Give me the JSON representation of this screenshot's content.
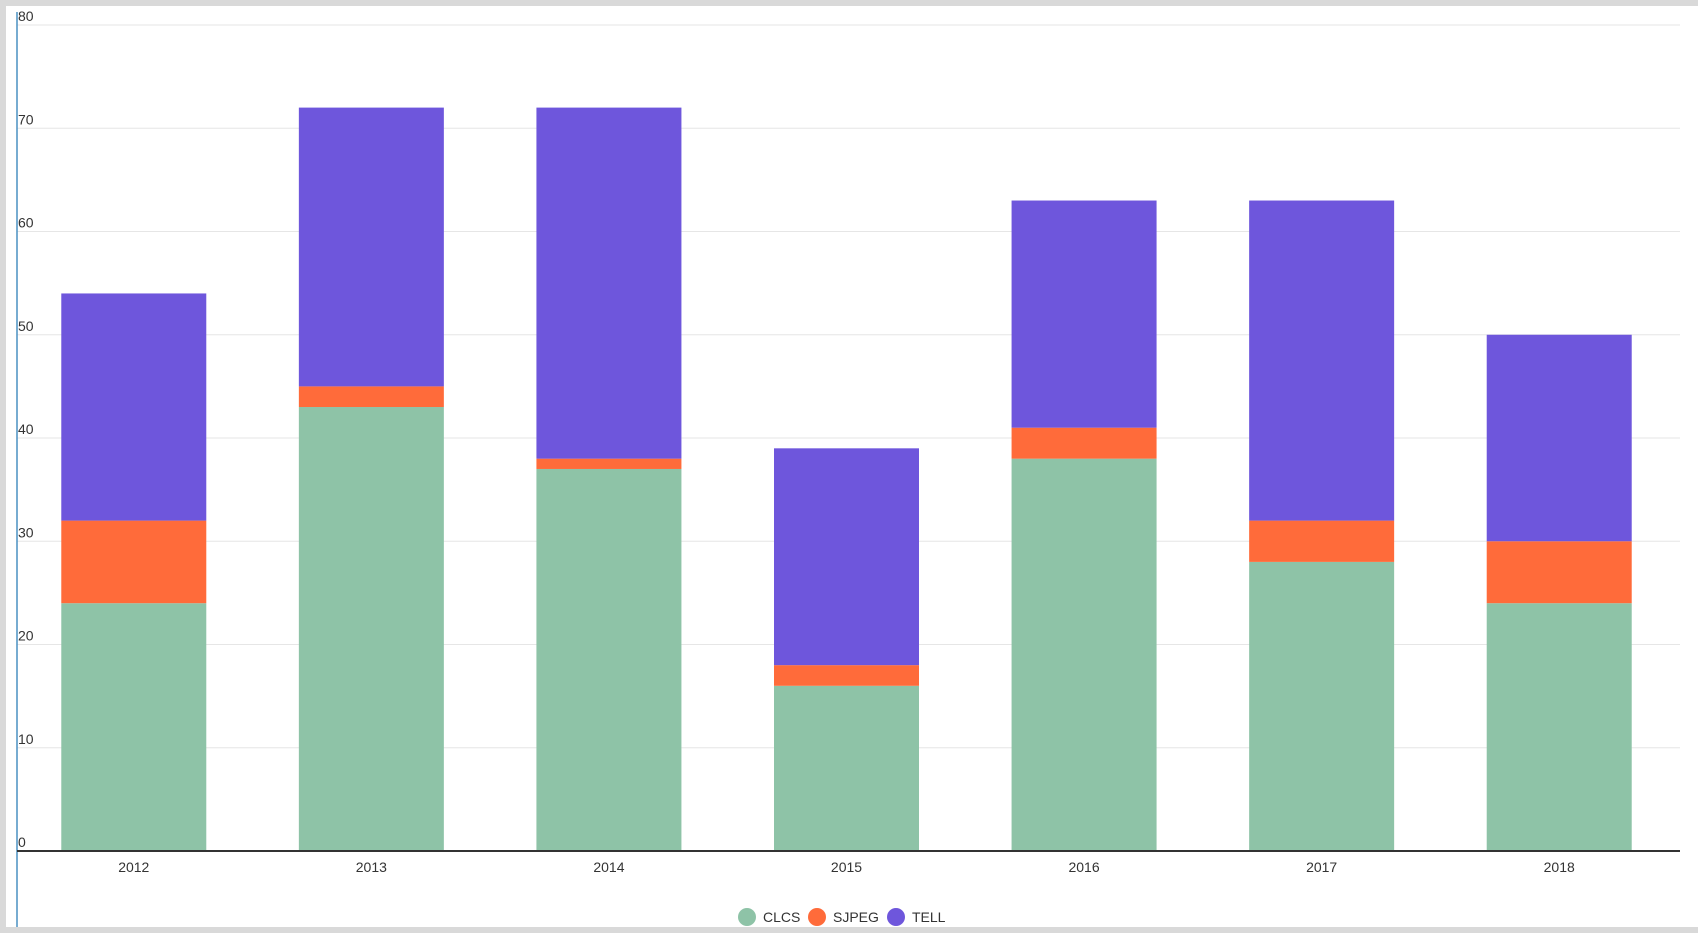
{
  "chart_data": {
    "type": "bar",
    "stacked": true,
    "categories": [
      "2012",
      "2013",
      "2014",
      "2015",
      "2016",
      "2017",
      "2018"
    ],
    "series": [
      {
        "name": "CLCS",
        "color": "#8ec3a7",
        "values": [
          24,
          43,
          37,
          16,
          38,
          28,
          24
        ]
      },
      {
        "name": "SJPEG",
        "color": "#ff6b3a",
        "values": [
          8,
          2,
          1,
          2,
          3,
          4,
          6
        ]
      },
      {
        "name": "TELL",
        "color": "#6e56dc",
        "values": [
          22,
          27,
          34,
          21,
          22,
          31,
          20
        ]
      }
    ],
    "ylim": [
      0,
      80
    ],
    "yticks": [
      "0",
      "10",
      "20",
      "30",
      "40",
      "50",
      "60",
      "70",
      "80"
    ],
    "grid": true,
    "legend": "bottom-center"
  }
}
